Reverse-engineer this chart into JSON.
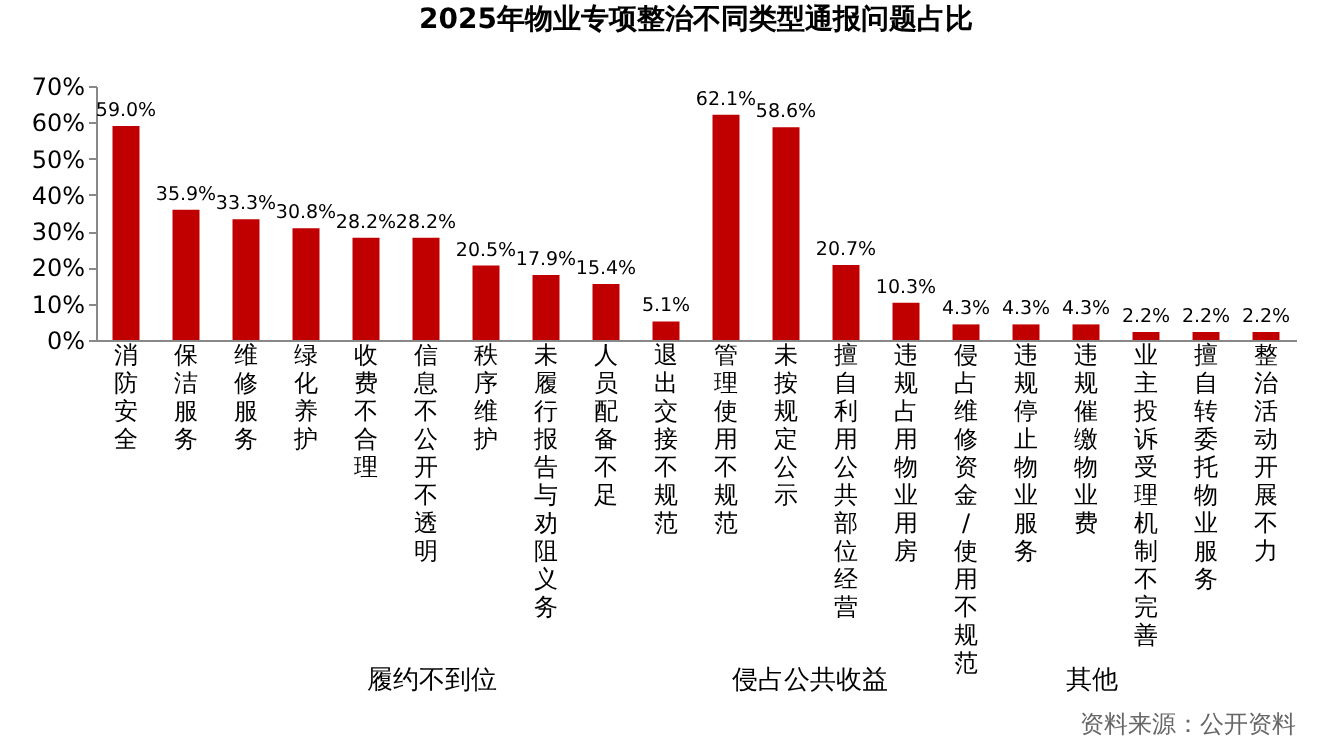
{
  "chart_data": {
    "type": "bar",
    "title": "2025年物业专项整治不同类型通报问题占比",
    "categories": [
      "消防安全",
      "保洁服务",
      "维修服务",
      "绿化养护",
      "收费不合理",
      "信息不公开不透明",
      "秩序维护",
      "未履行报告与劝阻义务",
      "人员配备不足",
      "退出交接不规范",
      "管理使用不规范",
      "未按规定公示",
      "擅自利用公共部位经营",
      "违规占用物业用房",
      "侵占维修资金/使用不规范",
      "违规停止物业服务",
      "违规催缴物业费",
      "业主投诉受理机制不完善",
      "擅自转委托物业服务",
      "整治活动开展不力"
    ],
    "values": [
      59.0,
      35.9,
      33.3,
      30.8,
      28.2,
      28.2,
      20.5,
      17.9,
      15.4,
      5.1,
      62.1,
      58.6,
      20.7,
      10.3,
      4.3,
      4.3,
      4.3,
      2.2,
      2.2,
      2.2
    ],
    "value_labels": [
      "59.0%",
      "35.9%",
      "33.3%",
      "30.8%",
      "28.2%",
      "28.2%",
      "20.5%",
      "17.9%",
      "15.4%",
      "5.1%",
      "62.1%",
      "58.6%",
      "20.7%",
      "10.3%",
      "4.3%",
      "4.3%",
      "4.3%",
      "2.2%",
      "2.2%",
      "2.2%"
    ],
    "color": "#c00000",
    "ylim": [
      0,
      70
    ],
    "yticks": [
      {
        "value": 0,
        "label": "0%"
      },
      {
        "value": 10,
        "label": "10%"
      },
      {
        "value": 20,
        "label": "20%"
      },
      {
        "value": 30,
        "label": "30%"
      },
      {
        "value": 40,
        "label": "40%"
      },
      {
        "value": 50,
        "label": "50%"
      },
      {
        "value": 60,
        "label": "60%"
      },
      {
        "value": 70,
        "label": "70%"
      }
    ],
    "annotations": [
      "履约不到位",
      "侵占公共收益",
      "其他",
      "资料来源：公开资料"
    ]
  }
}
